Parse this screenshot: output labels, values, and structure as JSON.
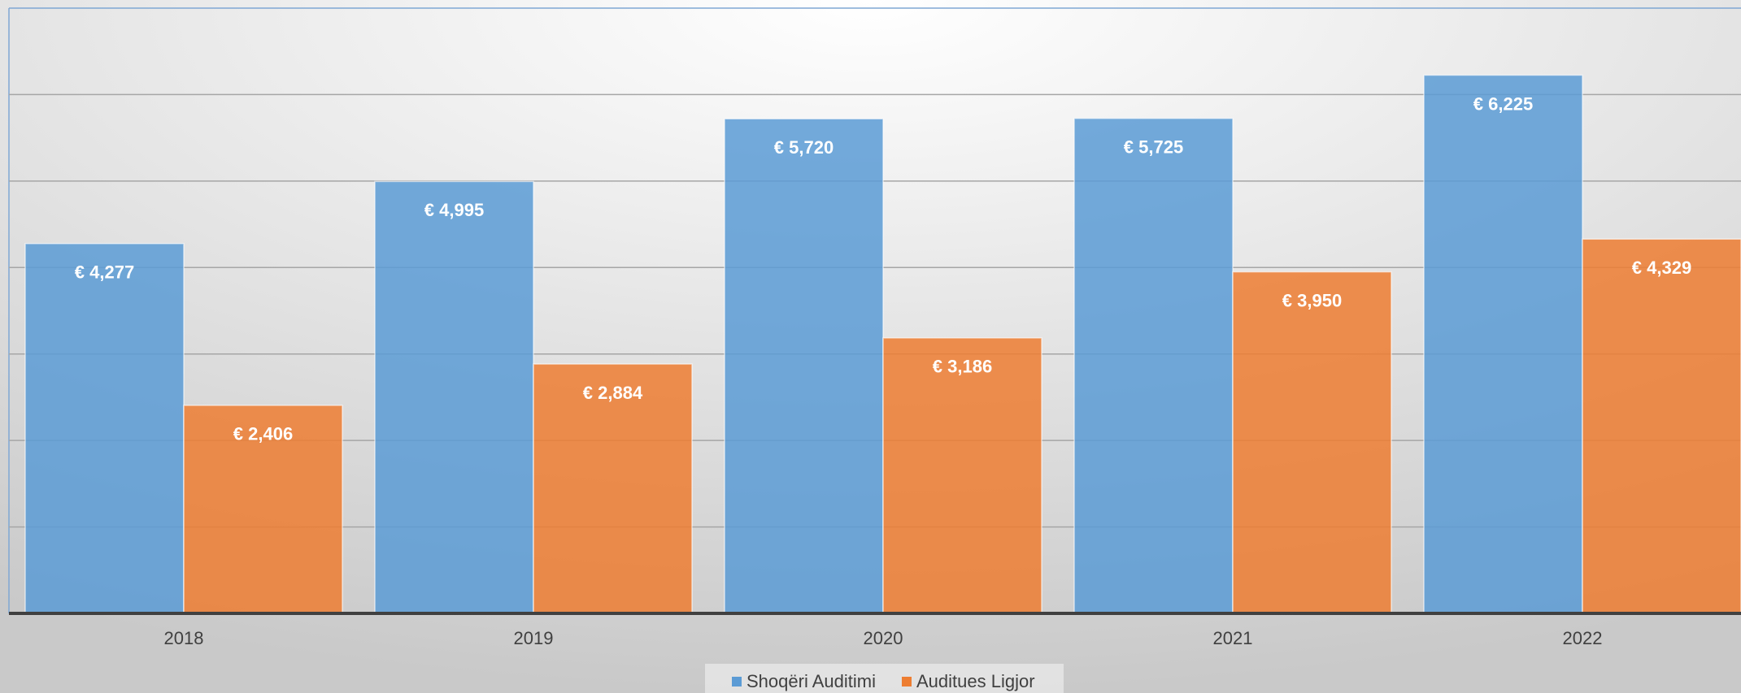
{
  "chart_data": {
    "type": "bar",
    "categories": [
      "2018",
      "2019",
      "2020",
      "2021",
      "2022"
    ],
    "series": [
      {
        "name": "Shoqëri Auditimi",
        "color": "#5b9bd5",
        "values": [
          4277,
          4995,
          5720,
          5725,
          6225
        ],
        "value_labels": [
          "€ 4,277",
          "€ 4,995",
          "€ 5,720",
          "€ 5,725",
          "€ 6,225"
        ]
      },
      {
        "name": "Auditues Ligjor",
        "color": "#ed7d31",
        "values": [
          2406,
          2884,
          3186,
          3950,
          4329
        ],
        "value_labels": [
          "€ 2,406",
          "€ 2,884",
          "€ 3,186",
          "€ 3,950",
          "€ 4,329"
        ]
      }
    ],
    "ylim": [
      0,
      7000
    ],
    "yticks": [
      0,
      1000,
      2000,
      3000,
      4000,
      5000,
      6000,
      7000
    ],
    "grid": true,
    "legend": "bottom"
  }
}
